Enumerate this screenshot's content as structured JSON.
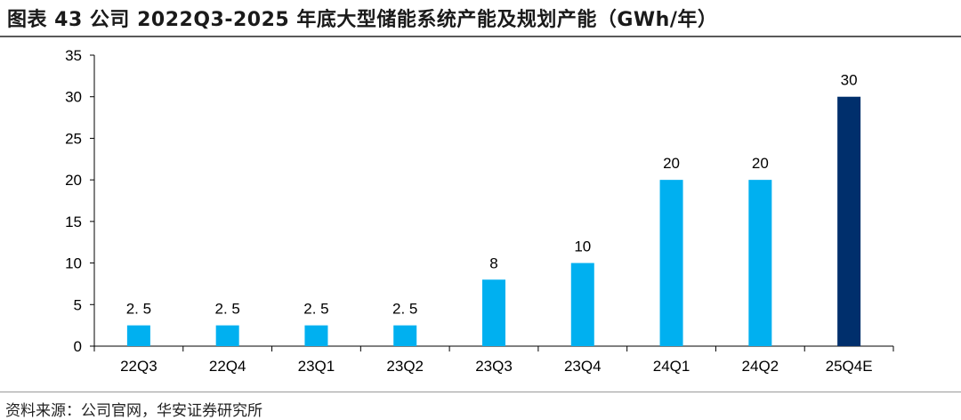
{
  "header": {
    "title": "图表 43  公司 2022Q3-2025 年底大型储能系统产能及规划产能（GWh/年）"
  },
  "footer": {
    "source": "资料来源：公司官网，华安证券研究所"
  },
  "chart_data": {
    "type": "bar",
    "title": "图表 43  公司 2022Q3-2025 年底大型储能系统产能及规划产能（GWh/年）",
    "categories": [
      "22Q3",
      "22Q4",
      "23Q1",
      "23Q2",
      "23Q3",
      "23Q4",
      "24Q1",
      "24Q2",
      "25Q4E"
    ],
    "values": [
      2.5,
      2.5,
      2.5,
      2.5,
      8,
      10,
      20,
      20,
      30
    ],
    "data_labels": [
      "2. 5",
      "2. 5",
      "2. 5",
      "2. 5",
      "8",
      "10",
      "20",
      "20",
      "30"
    ],
    "yticks": [
      "0",
      "5",
      "10",
      "15",
      "20",
      "25",
      "30",
      "35"
    ],
    "ylim": [
      0,
      35
    ],
    "xlabel": "",
    "ylabel": "",
    "grid": false,
    "legend": "none",
    "colors": {
      "actual": "#00B0F0",
      "planned": "#002F6C",
      "axis": "#000000"
    },
    "planned_flags": [
      false,
      false,
      false,
      false,
      false,
      false,
      false,
      false,
      true
    ]
  }
}
